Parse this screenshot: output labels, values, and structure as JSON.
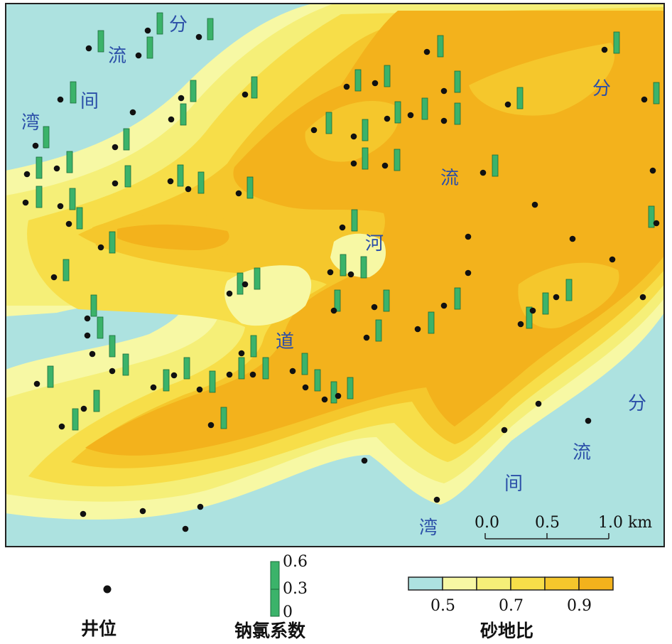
{
  "map": {
    "zone_labels": [
      "分",
      "流",
      "间",
      "湾",
      "分",
      "流",
      "河",
      "道",
      "分",
      "流",
      "间",
      "湾"
    ],
    "scale": {
      "ticks": [
        "0.0",
        "0.5",
        "1.0 km"
      ]
    }
  },
  "legend": {
    "well": {
      "title": "井位"
    },
    "ratio": {
      "title": "钠氯系数",
      "ticks": [
        "0.6",
        "0.3",
        "0"
      ]
    },
    "sand": {
      "title": "砂地比",
      "ticks": [
        "0.5",
        "0.7",
        "0.9"
      ],
      "colors": [
        "#ade2e0",
        "#f7f8a4",
        "#f5ef78",
        "#f7de49",
        "#f5c72c",
        "#f3b21c"
      ]
    }
  },
  "colors": {
    "water": "#ade2e0",
    "pale_yellow": "#f7f8a4",
    "light_yellow": "#f5ef78",
    "yellow": "#f7de49",
    "gold": "#f5c72c",
    "orange": "#f3b21c",
    "bar_green": "#3bb36a",
    "label_blue": "#2b4fa8"
  }
}
